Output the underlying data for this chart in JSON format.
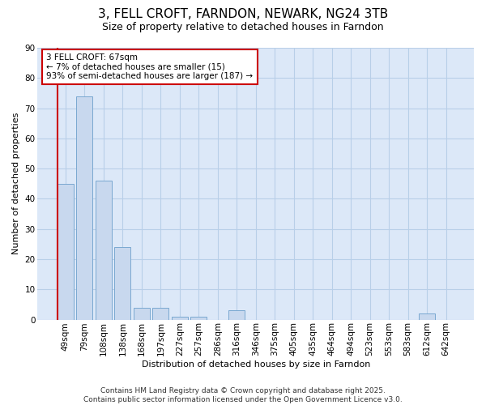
{
  "title1": "3, FELL CROFT, FARNDON, NEWARK, NG24 3TB",
  "title2": "Size of property relative to detached houses in Farndon",
  "xlabel": "Distribution of detached houses by size in Farndon",
  "ylabel": "Number of detached properties",
  "categories": [
    "49sqm",
    "79sqm",
    "108sqm",
    "138sqm",
    "168sqm",
    "197sqm",
    "227sqm",
    "257sqm",
    "286sqm",
    "316sqm",
    "346sqm",
    "375sqm",
    "405sqm",
    "435sqm",
    "464sqm",
    "494sqm",
    "523sqm",
    "553sqm",
    "583sqm",
    "612sqm",
    "642sqm"
  ],
  "values": [
    45,
    74,
    46,
    24,
    4,
    4,
    1,
    1,
    0,
    3,
    0,
    0,
    0,
    0,
    0,
    0,
    0,
    0,
    0,
    2,
    0
  ],
  "bar_color": "#c8d8ee",
  "bar_edge_color": "#7aa8d0",
  "annotation_box_text_line1": "3 FELL CROFT: 67sqm",
  "annotation_box_text_line2": "← 7% of detached houses are smaller (15)",
  "annotation_box_text_line3": "93% of semi-detached houses are larger (187) →",
  "annotation_box_color": "#ffffff",
  "annotation_box_edge_color": "#cc0000",
  "marker_line_color": "#cc0000",
  "ylim": [
    0,
    90
  ],
  "yticks": [
    0,
    10,
    20,
    30,
    40,
    50,
    60,
    70,
    80,
    90
  ],
  "grid_color": "#b8cfe8",
  "plot_bg_color": "#dce8f8",
  "figure_bg_color": "#ffffff",
  "footer_line1": "Contains HM Land Registry data © Crown copyright and database right 2025.",
  "footer_line2": "Contains public sector information licensed under the Open Government Licence v3.0.",
  "title1_fontsize": 11,
  "title2_fontsize": 9,
  "xlabel_fontsize": 8,
  "ylabel_fontsize": 8,
  "tick_fontsize": 7.5,
  "annotation_fontsize": 7.5,
  "footer_fontsize": 6.5
}
